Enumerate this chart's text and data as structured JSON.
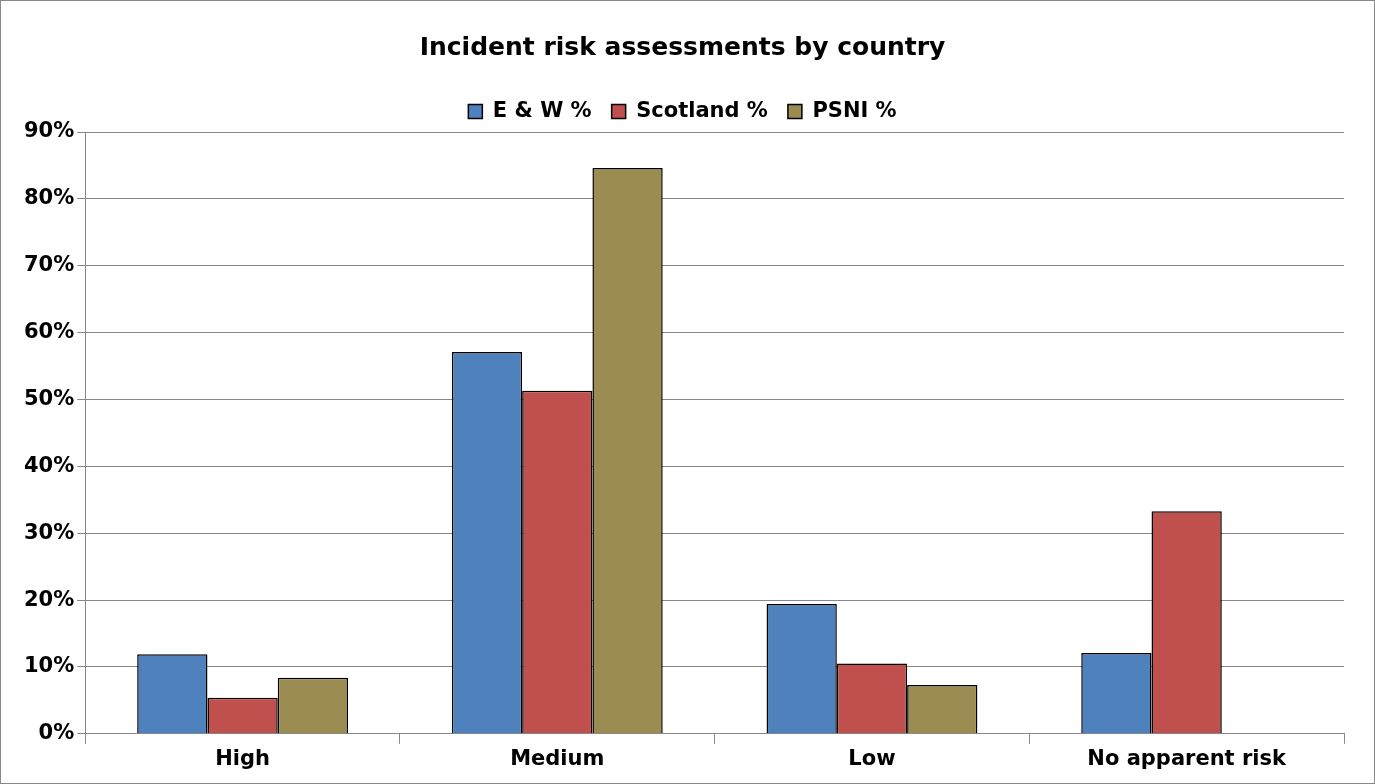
{
  "chart_data": {
    "type": "bar",
    "title": "Incident risk assessments by country",
    "categories": [
      "High",
      "Medium",
      "Low",
      "No apparent risk"
    ],
    "series": [
      {
        "name": "E & W %",
        "color": "#4f81bd",
        "values": [
          11.9,
          57.1,
          19.4,
          12.1
        ]
      },
      {
        "name": "Scotland %",
        "color": "#c0504d",
        "values": [
          5.4,
          51.3,
          10.5,
          33.3
        ]
      },
      {
        "name": "PSNI %",
        "color": "#9b8c52",
        "values": [
          8.4,
          84.6,
          7.3,
          0
        ]
      }
    ],
    "ylim": [
      0,
      90
    ],
    "yticks": [
      {
        "value": 0,
        "label": "0%"
      },
      {
        "value": 10,
        "label": "10%"
      },
      {
        "value": 20,
        "label": "20%"
      },
      {
        "value": 30,
        "label": "30%"
      },
      {
        "value": 40,
        "label": "40%"
      },
      {
        "value": 50,
        "label": "50%"
      },
      {
        "value": 60,
        "label": "60%"
      },
      {
        "value": 70,
        "label": "70%"
      },
      {
        "value": 80,
        "label": "80%"
      },
      {
        "value": 90,
        "label": "90%"
      }
    ],
    "grid": "y",
    "legend": "top"
  }
}
